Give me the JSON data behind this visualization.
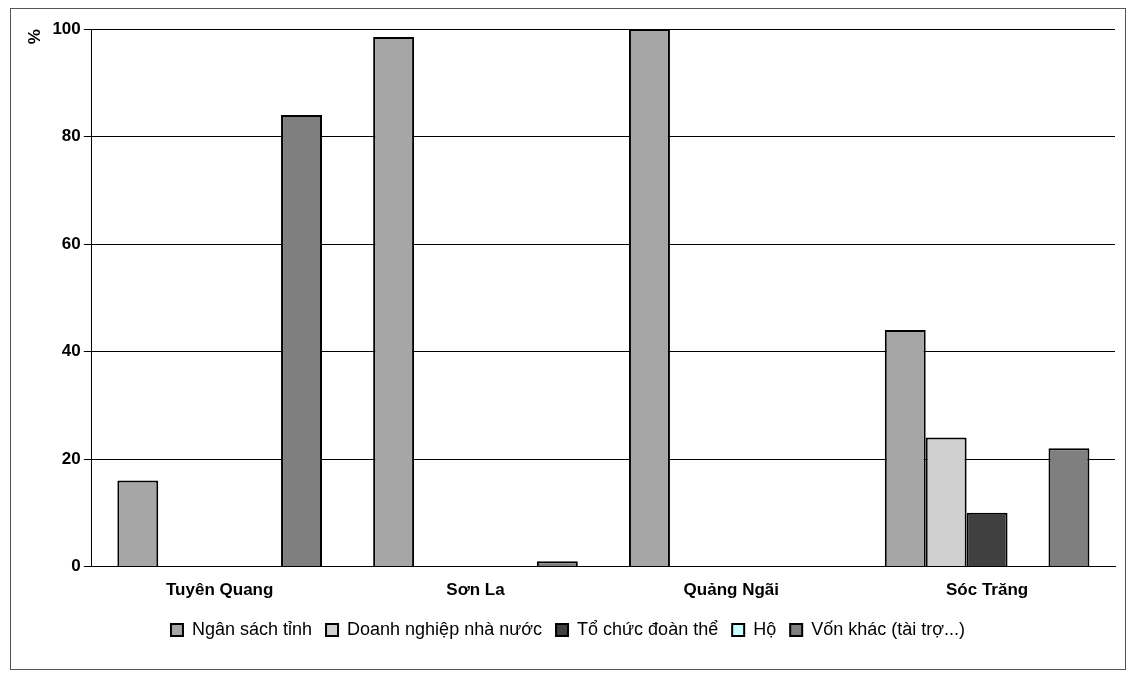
{
  "chart_data": {
    "type": "bar",
    "ylabel": "%",
    "categories": [
      "Tuyên Quang",
      "Sơn La",
      "Quảng Ngãi",
      "Sóc Trăng"
    ],
    "series": [
      {
        "name": "Ngân sách tỉnh",
        "color": "#a6a6a6",
        "values": [
          16,
          98.5,
          100,
          44
        ]
      },
      {
        "name": "Doanh nghiệp nhà nước",
        "color": "#d0d0d0",
        "values": [
          0,
          0,
          0,
          24
        ]
      },
      {
        "name": "Tổ chức đoàn thể",
        "color": "#404040",
        "values": [
          0,
          0,
          0,
          10
        ]
      },
      {
        "name": "Hộ",
        "color": "#ccffff",
        "values": [
          0,
          0,
          0,
          0
        ]
      },
      {
        "name": "Vốn khác (tài trợ...)",
        "color": "#7f7f7f",
        "values": [
          84,
          1,
          0,
          22
        ]
      }
    ],
    "ylim": [
      0,
      100
    ],
    "yticks": [
      0,
      20,
      40,
      60,
      80,
      100
    ],
    "grid": "y",
    "legend": "bottom"
  }
}
